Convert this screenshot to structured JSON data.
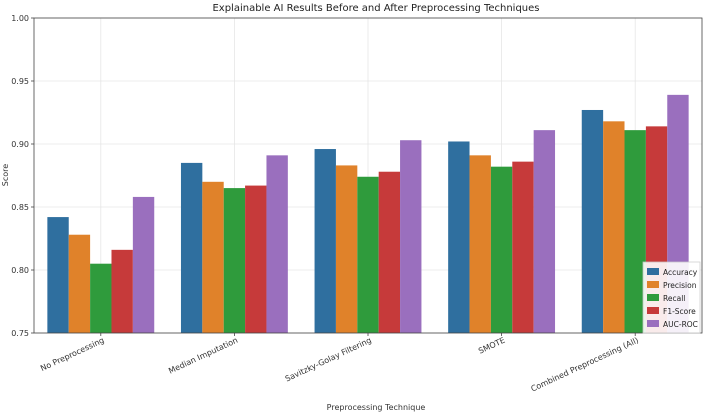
{
  "chart_data": {
    "type": "bar",
    "title": "Explainable AI Results Before and After Preprocessing Techniques",
    "xlabel": "Preprocessing Technique",
    "ylabel": "Score",
    "ylim": [
      0.75,
      1.0
    ],
    "yticks": [
      "0.75",
      "0.80",
      "0.85",
      "0.90",
      "0.95",
      "1.00"
    ],
    "grid": true,
    "legend_position": "bottom-right",
    "categories": [
      "No Preprocessing",
      "Median Imputation",
      "Savitzky-Golay Filtering",
      "SMOTE",
      "Combined Preprocessing (All)"
    ],
    "series": [
      {
        "name": "Accuracy",
        "color": "#2f6f9f",
        "values": [
          0.842,
          0.885,
          0.896,
          0.902,
          0.927
        ]
      },
      {
        "name": "Precision",
        "color": "#e0822a",
        "values": [
          0.828,
          0.87,
          0.883,
          0.891,
          0.918
        ]
      },
      {
        "name": "Recall",
        "color": "#2f9b3c",
        "values": [
          0.805,
          0.865,
          0.874,
          0.882,
          0.911
        ]
      },
      {
        "name": "F1-Score",
        "color": "#c63a3a",
        "values": [
          0.816,
          0.867,
          0.878,
          0.886,
          0.914
        ]
      },
      {
        "name": "AUC-ROC",
        "color": "#9a6fbe",
        "values": [
          0.858,
          0.891,
          0.903,
          0.911,
          0.939
        ]
      }
    ]
  }
}
